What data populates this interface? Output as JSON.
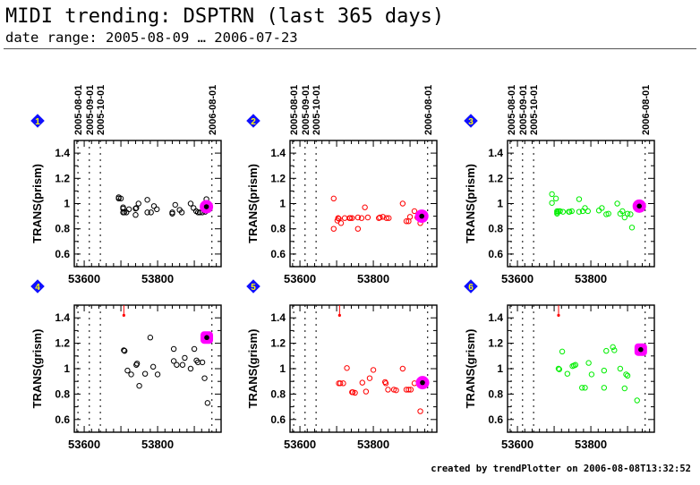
{
  "header": {
    "title": "MIDI trending: DSPTRN (last 365 days)",
    "subtitle": "date range: 2005-08-09 … 2006-07-23"
  },
  "footer": "created by trendPlotter on 2006-08-08T13:32:52",
  "colors": {
    "series_black": "#000000",
    "series_red": "#ff0000",
    "series_green": "#00ee00",
    "highlight": "#ff00ff",
    "badge_fill": "#1010ff",
    "badge_text": "#ffff00"
  },
  "chart_data": [
    {
      "type": "scatter",
      "panel": 1,
      "color": "black",
      "ylabel": "TRANS(prism)",
      "xlabel": "",
      "xlim": [
        53573,
        53973
      ],
      "ylim": [
        0.5,
        1.5
      ],
      "xticks": [
        "53600",
        "53800"
      ],
      "yticks": [
        "0.6",
        "0.8",
        "1",
        "1.2",
        "1.4"
      ],
      "date_markers": [
        {
          "label": "2005-08-01",
          "mjd": 53583
        },
        {
          "label": "2005-09-01",
          "mjd": 53614
        },
        {
          "label": "2005-10-01",
          "mjd": 53644
        },
        {
          "label": "2006-08-01",
          "mjd": 53948
        }
      ],
      "points": [
        [
          53694,
          1.05
        ],
        [
          53694,
          1.04
        ],
        [
          53700,
          1.04
        ],
        [
          53706,
          0.97
        ],
        [
          53706,
          0.96
        ],
        [
          53706,
          0.93
        ],
        [
          53709,
          0.93
        ],
        [
          53715,
          0.93
        ],
        [
          53722,
          0.955
        ],
        [
          53740,
          0.91
        ],
        [
          53740,
          0.96
        ],
        [
          53742,
          0.965
        ],
        [
          53748,
          1.0
        ],
        [
          53772,
          1.03
        ],
        [
          53772,
          0.93
        ],
        [
          53782,
          0.93
        ],
        [
          53790,
          0.98
        ],
        [
          53798,
          0.955
        ],
        [
          53840,
          0.93
        ],
        [
          53840,
          0.92
        ],
        [
          53848,
          0.99
        ],
        [
          53860,
          0.95
        ],
        [
          53866,
          0.93
        ],
        [
          53890,
          1.0
        ],
        [
          53898,
          0.965
        ],
        [
          53905,
          0.94
        ],
        [
          53910,
          0.93
        ],
        [
          53915,
          0.93
        ],
        [
          53922,
          0.93
        ],
        [
          53930,
          0.935
        ],
        [
          53933,
          1.035
        ]
      ],
      "highlight": [
        53933,
        0.975
      ]
    },
    {
      "type": "scatter",
      "panel": 2,
      "color": "red",
      "ylabel": "TRANS(prism)",
      "xlabel": "",
      "xlim": [
        53573,
        53973
      ],
      "ylim": [
        0.5,
        1.5
      ],
      "xticks": [
        "53600",
        "53800"
      ],
      "yticks": [
        "0.6",
        "0.8",
        "1",
        "1.2",
        "1.4"
      ],
      "date_markers": [
        {
          "label": "2005-08-01",
          "mjd": 53583
        },
        {
          "label": "2005-09-01",
          "mjd": 53614
        },
        {
          "label": "2005-10-01",
          "mjd": 53644
        },
        {
          "label": "2006-08-01",
          "mjd": 53948
        }
      ],
      "points": [
        [
          53692,
          1.04
        ],
        [
          53692,
          0.8
        ],
        [
          53702,
          0.865
        ],
        [
          53704,
          0.885
        ],
        [
          53706,
          0.88
        ],
        [
          53712,
          0.845
        ],
        [
          53722,
          0.885
        ],
        [
          53735,
          0.885
        ],
        [
          53737,
          0.885
        ],
        [
          53742,
          0.885
        ],
        [
          53758,
          0.8
        ],
        [
          53758,
          0.89
        ],
        [
          53768,
          0.885
        ],
        [
          53777,
          0.97
        ],
        [
          53785,
          0.89
        ],
        [
          53815,
          0.885
        ],
        [
          53818,
          0.89
        ],
        [
          53826,
          0.895
        ],
        [
          53836,
          0.885
        ],
        [
          53842,
          0.885
        ],
        [
          53880,
          1.0
        ],
        [
          53890,
          0.86
        ],
        [
          53896,
          0.86
        ],
        [
          53900,
          0.895
        ],
        [
          53912,
          0.94
        ],
        [
          53920,
          0.89
        ],
        [
          53928,
          0.845
        ]
      ],
      "highlight": [
        53932,
        0.9
      ]
    },
    {
      "type": "scatter",
      "panel": 3,
      "color": "green",
      "ylabel": "TRANS(prism)",
      "xlabel": "",
      "xlim": [
        53573,
        53973
      ],
      "ylim": [
        0.5,
        1.5
      ],
      "xticks": [
        "53600",
        "53800"
      ],
      "yticks": [
        "0.6",
        "0.8",
        "1",
        "1.2",
        "1.4"
      ],
      "date_markers": [
        {
          "label": "2005-08-01",
          "mjd": 53583
        },
        {
          "label": "2005-09-01",
          "mjd": 53614
        },
        {
          "label": "2005-10-01",
          "mjd": 53644
        },
        {
          "label": "2006-08-01",
          "mjd": 53948
        }
      ],
      "points": [
        [
          53694,
          1.075
        ],
        [
          53694,
          1.005
        ],
        [
          53705,
          1.04
        ],
        [
          53708,
          0.94
        ],
        [
          53708,
          0.93
        ],
        [
          53708,
          0.92
        ],
        [
          53712,
          0.94
        ],
        [
          53716,
          0.94
        ],
        [
          53724,
          0.935
        ],
        [
          53740,
          0.935
        ],
        [
          53742,
          0.935
        ],
        [
          53748,
          0.94
        ],
        [
          53768,
          1.035
        ],
        [
          53768,
          0.935
        ],
        [
          53778,
          0.94
        ],
        [
          53784,
          0.965
        ],
        [
          53792,
          0.94
        ],
        [
          53822,
          0.945
        ],
        [
          53830,
          0.965
        ],
        [
          53842,
          0.915
        ],
        [
          53848,
          0.92
        ],
        [
          53872,
          1.0
        ],
        [
          53880,
          0.92
        ],
        [
          53886,
          0.94
        ],
        [
          53892,
          0.89
        ],
        [
          53900,
          0.92
        ],
        [
          53908,
          0.915
        ],
        [
          53912,
          0.81
        ]
      ],
      "highlight": [
        53932,
        0.98
      ]
    },
    {
      "type": "scatter",
      "panel": 4,
      "color": "black",
      "ylabel": "TRANS(grism)",
      "xlabel": "",
      "xlim": [
        53573,
        53973
      ],
      "ylim": [
        0.5,
        1.5
      ],
      "xticks": [
        "53600",
        "53800"
      ],
      "yticks": [
        "0.6",
        "0.8",
        "1",
        "1.2",
        "1.4"
      ],
      "date_markers": [
        {
          "label": "2005-08-01",
          "mjd": 53583
        },
        {
          "label": "2005-09-01",
          "mjd": 53614
        },
        {
          "label": "2005-10-01",
          "mjd": 53644
        },
        {
          "label": "2006-08-01",
          "mjd": 53948
        }
      ],
      "outlier": [
        53708,
        1.42
      ],
      "points": [
        [
          53708,
          1.145
        ],
        [
          53710,
          1.14
        ],
        [
          53718,
          0.985
        ],
        [
          53728,
          0.955
        ],
        [
          53742,
          1.03
        ],
        [
          53744,
          1.04
        ],
        [
          53750,
          0.865
        ],
        [
          53766,
          0.96
        ],
        [
          53780,
          1.245
        ],
        [
          53788,
          1.015
        ],
        [
          53800,
          0.955
        ],
        [
          53844,
          1.155
        ],
        [
          53844,
          1.06
        ],
        [
          53852,
          1.03
        ],
        [
          53868,
          1.03
        ],
        [
          53874,
          1.085
        ],
        [
          53890,
          1.0
        ],
        [
          53900,
          1.155
        ],
        [
          53906,
          1.065
        ],
        [
          53910,
          1.05
        ],
        [
          53922,
          1.05
        ],
        [
          53928,
          0.925
        ],
        [
          53936,
          0.73
        ]
      ],
      "highlight": [
        53934,
        1.245
      ]
    },
    {
      "type": "scatter",
      "panel": 5,
      "color": "red",
      "ylabel": "TRANS(grism)",
      "xlabel": "",
      "xlim": [
        53573,
        53973
      ],
      "ylim": [
        0.5,
        1.5
      ],
      "xticks": [
        "53600",
        "53800"
      ],
      "yticks": [
        "0.6",
        "0.8",
        "1",
        "1.2",
        "1.4"
      ],
      "date_markers": [
        {
          "label": "2005-08-01",
          "mjd": 53583
        },
        {
          "label": "2005-09-01",
          "mjd": 53614
        },
        {
          "label": "2005-10-01",
          "mjd": 53644
        },
        {
          "label": "2006-08-01",
          "mjd": 53948
        }
      ],
      "outlier": [
        53708,
        1.42
      ],
      "points": [
        [
          53706,
          0.885
        ],
        [
          53710,
          0.885
        ],
        [
          53718,
          0.885
        ],
        [
          53728,
          1.005
        ],
        [
          53742,
          0.815
        ],
        [
          53744,
          0.815
        ],
        [
          53750,
          0.81
        ],
        [
          53770,
          0.89
        ],
        [
          53780,
          0.82
        ],
        [
          53790,
          0.925
        ],
        [
          53800,
          0.99
        ],
        [
          53832,
          0.895
        ],
        [
          53834,
          0.885
        ],
        [
          53840,
          0.835
        ],
        [
          53856,
          0.835
        ],
        [
          53862,
          0.83
        ],
        [
          53880,
          1.0
        ],
        [
          53890,
          0.835
        ],
        [
          53896,
          0.835
        ],
        [
          53902,
          0.835
        ],
        [
          53912,
          0.885
        ],
        [
          53928,
          0.665
        ]
      ],
      "highlight": [
        53934,
        0.89
      ]
    },
    {
      "type": "scatter",
      "panel": 6,
      "color": "green",
      "ylabel": "TRANS(grism)",
      "xlabel": "",
      "xlim": [
        53573,
        53973
      ],
      "ylim": [
        0.5,
        1.5
      ],
      "xticks": [
        "53600",
        "53800"
      ],
      "yticks": [
        "0.6",
        "0.8",
        "1",
        "1.2",
        "1.4"
      ],
      "date_markers": [
        {
          "label": "2005-08-01",
          "mjd": 53583
        },
        {
          "label": "2005-09-01",
          "mjd": 53614
        },
        {
          "label": "2005-10-01",
          "mjd": 53644
        },
        {
          "label": "2006-08-01",
          "mjd": 53948
        }
      ],
      "outlier": [
        53712,
        1.42
      ],
      "points": [
        [
          53712,
          1.0
        ],
        [
          53714,
          0.995
        ],
        [
          53722,
          1.135
        ],
        [
          53736,
          0.96
        ],
        [
          53750,
          1.02
        ],
        [
          53754,
          1.025
        ],
        [
          53758,
          1.03
        ],
        [
          53776,
          0.85
        ],
        [
          53784,
          0.85
        ],
        [
          53794,
          1.045
        ],
        [
          53802,
          0.955
        ],
        [
          53836,
          0.985
        ],
        [
          53836,
          0.85
        ],
        [
          53842,
          1.14
        ],
        [
          53860,
          1.17
        ],
        [
          53864,
          1.145
        ],
        [
          53880,
          1.0
        ],
        [
          53892,
          0.845
        ],
        [
          53896,
          0.955
        ],
        [
          53900,
          0.945
        ],
        [
          53926,
          0.75
        ],
        [
          53928,
          1.15
        ]
      ],
      "highlight": [
        53936,
        1.15
      ]
    }
  ]
}
